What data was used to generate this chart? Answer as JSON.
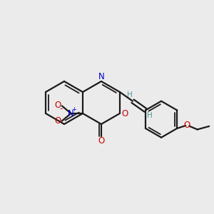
{
  "background_color": "#ebebeb",
  "bond_color": "#1a1a1a",
  "N_color": "#0000cc",
  "O_color": "#cc0000",
  "H_color": "#4a9898",
  "figsize": [
    3.0,
    3.0
  ],
  "dpi": 100,
  "xlim": [
    0,
    10
  ],
  "ylim": [
    0,
    10
  ]
}
